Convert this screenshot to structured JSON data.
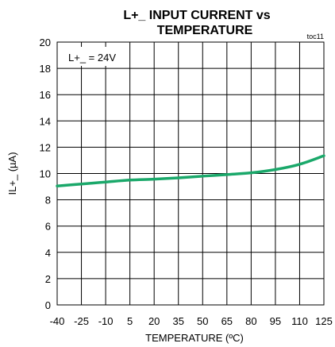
{
  "chart_data": {
    "type": "line",
    "title_line1": "L+_ INPUT CURRENT vs",
    "title_line2": "TEMPERATURE",
    "figure_id": "toc11",
    "xlabel": "TEMPERATURE (ºC)",
    "ylabel": "IL+_ (µA)",
    "annotation": "L+_ = 24V",
    "xlim": [
      -40,
      125
    ],
    "ylim": [
      0,
      20
    ],
    "x_ticks": [
      -40,
      -25,
      -10,
      5,
      20,
      35,
      50,
      65,
      80,
      95,
      110,
      125
    ],
    "x_tick_labels": [
      "-40",
      "-25",
      "-10",
      "5",
      "20",
      "35",
      "50",
      "65",
      "80",
      "95",
      "110",
      "125"
    ],
    "y_ticks": [
      0,
      2,
      4,
      6,
      8,
      10,
      12,
      14,
      16,
      18,
      20
    ],
    "y_tick_labels": [
      "0",
      "2",
      "4",
      "6",
      "8",
      "10",
      "12",
      "14",
      "16",
      "18",
      "20"
    ],
    "grid": true,
    "series": [
      {
        "color": "#1aa86a",
        "x": [
          -40,
          -25,
          -10,
          5,
          20,
          35,
          50,
          65,
          80,
          95,
          110,
          125
        ],
        "y": [
          9.05,
          9.2,
          9.35,
          9.5,
          9.57,
          9.67,
          9.8,
          9.92,
          10.05,
          10.3,
          10.7,
          11.35
        ]
      }
    ]
  }
}
